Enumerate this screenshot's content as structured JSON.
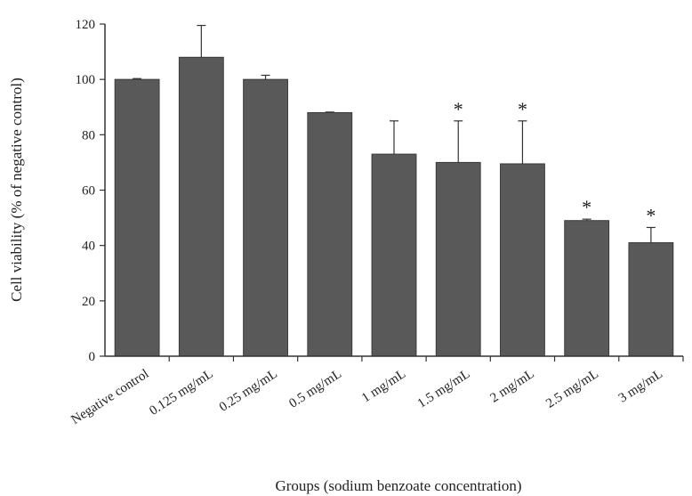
{
  "chart_data": {
    "type": "bar",
    "xlabel": "Groups (sodium  benzoate concentration)",
    "ylabel": "Cell viability (% of negative control)",
    "ylim": [
      0,
      120
    ],
    "yticks": [
      0,
      20,
      40,
      60,
      80,
      100,
      120
    ],
    "grid": false,
    "bar_color": "#595959",
    "categories": [
      "Negative control",
      "0.125 mg/mL",
      "0.25 mg/mL",
      "0.5 mg/mL",
      "1 mg/mL",
      "1.5 mg/mL",
      "2 mg/mL",
      "2.5 mg/mL",
      "3 mg/mL"
    ],
    "values": [
      100,
      108,
      100,
      88,
      73,
      70,
      69.5,
      49,
      41
    ],
    "error_upper": [
      0.3,
      11.5,
      1.5,
      0.2,
      12,
      15,
      15.5,
      0.5,
      5.5
    ],
    "significance": [
      "",
      "",
      "",
      "",
      "",
      "*",
      "*",
      "*",
      "*"
    ]
  }
}
